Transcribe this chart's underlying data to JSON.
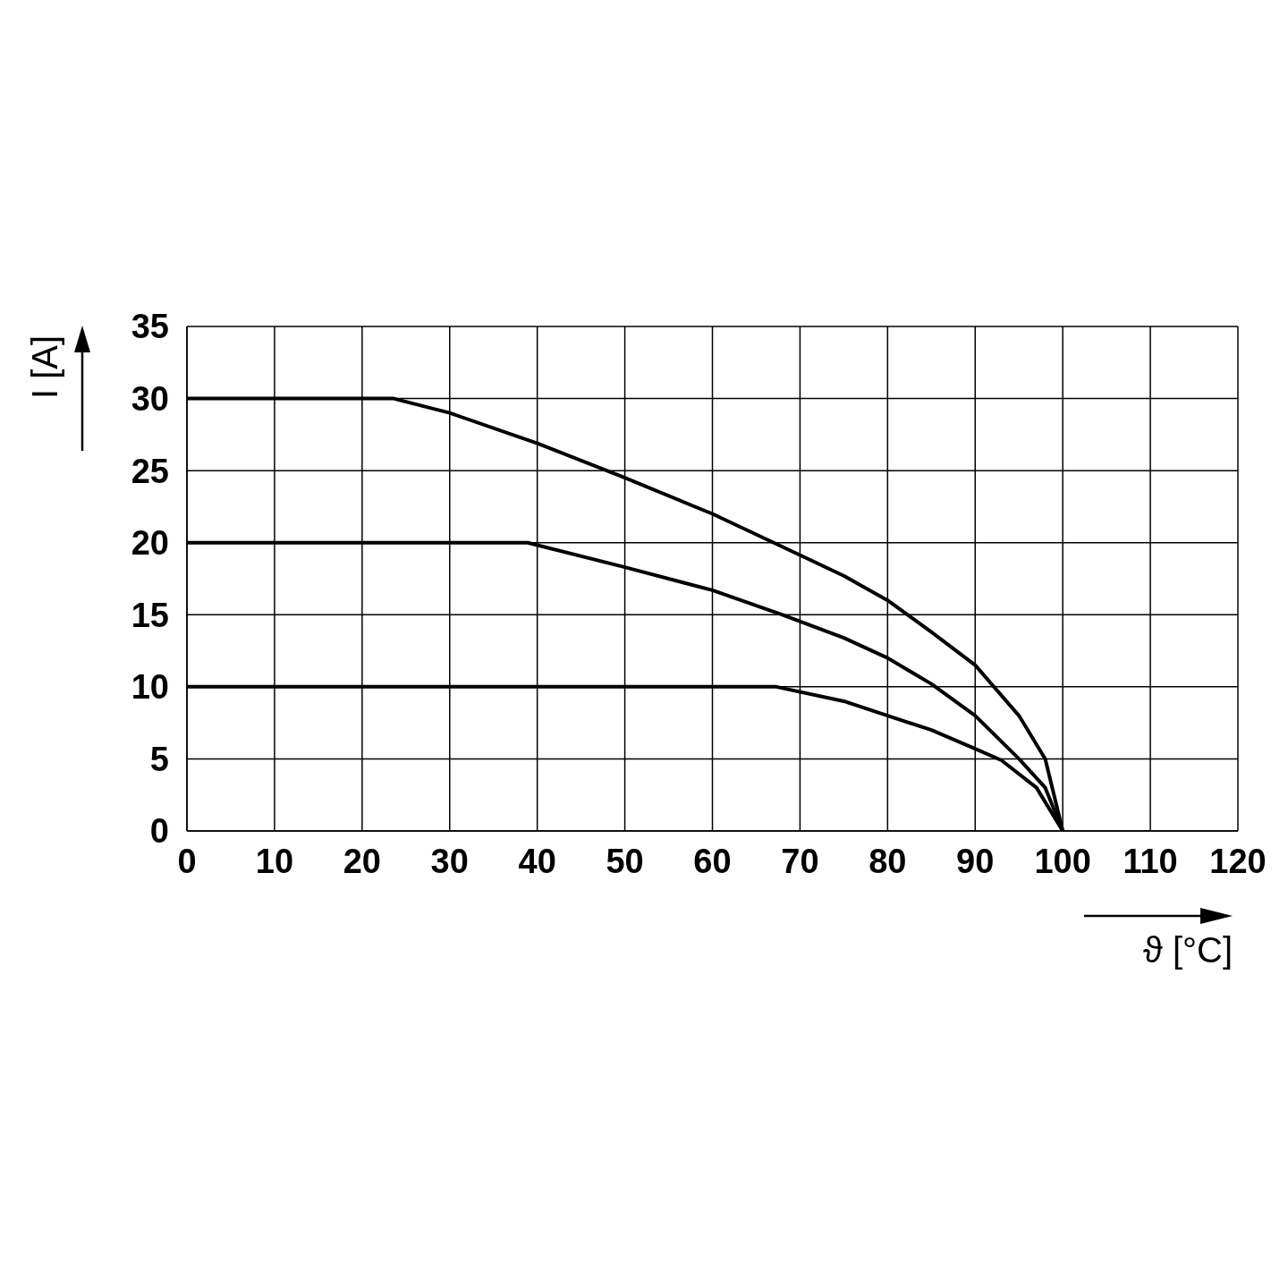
{
  "chart_data": {
    "type": "line",
    "xlabel": "ϑ [°C]",
    "ylabel": "I [A]",
    "xlim": [
      0,
      120
    ],
    "xticks": [
      0,
      10,
      20,
      30,
      40,
      50,
      60,
      70,
      80,
      90,
      100,
      110,
      120
    ],
    "ylim": [
      0,
      35
    ],
    "yticks": [
      0,
      5,
      10,
      15,
      20,
      25,
      30,
      35
    ],
    "grid": true,
    "series": [
      {
        "color": "#000000",
        "x": [
          0,
          23.6,
          30,
          40,
          50,
          60,
          67,
          75,
          80,
          85,
          90,
          95,
          98,
          100
        ],
        "values": [
          30,
          30,
          29,
          26.9,
          24.5,
          22,
          20,
          17.7,
          16,
          13.8,
          11.5,
          8,
          5,
          0
        ]
      },
      {
        "color": "#000000",
        "x": [
          0,
          38.9,
          50,
          60,
          68,
          75,
          80,
          85,
          90,
          95,
          98,
          100
        ],
        "values": [
          20,
          20,
          18.3,
          16.7,
          15,
          13.4,
          12,
          10.2,
          8,
          5,
          3,
          0
        ]
      },
      {
        "color": "#000000",
        "x": [
          0,
          67.3,
          75,
          80,
          85,
          90,
          93,
          97,
          100
        ],
        "values": [
          10,
          10,
          9,
          8,
          7,
          5.7,
          4.9,
          3,
          0
        ]
      }
    ]
  }
}
